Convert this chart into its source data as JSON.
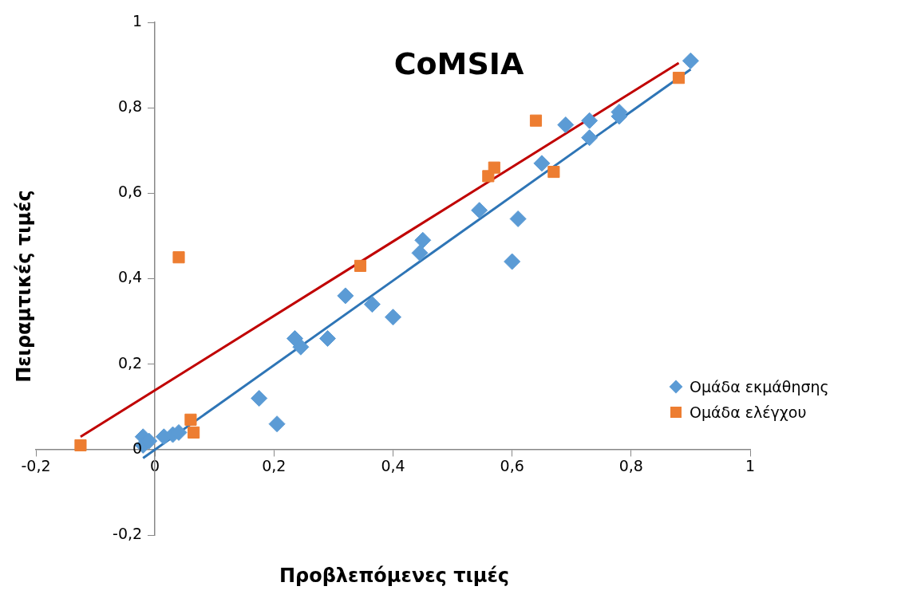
{
  "chart_data": {
    "type": "scatter",
    "title": "CoMSIA",
    "xlabel": "Προβλεπόμενες τιμές",
    "ylabel": "Πειραμτικές τιμές",
    "xlim": [
      -0.2,
      1
    ],
    "ylim": [
      -0.2,
      1
    ],
    "xticks": [
      {
        "value": -0.2,
        "label": "-0,2"
      },
      0,
      {
        "value": 0.2,
        "label": "0,2"
      },
      {
        "value": 0.4,
        "label": "0,4"
      },
      {
        "value": 0.6,
        "label": "0,6"
      },
      {
        "value": 0.8,
        "label": "0,8"
      },
      1
    ],
    "yticks": [
      {
        "value": -0.2,
        "label": "-0,2"
      },
      0,
      {
        "value": 0.2,
        "label": "0,2"
      },
      {
        "value": 0.4,
        "label": "0,4"
      },
      {
        "value": 0.6,
        "label": "0,6"
      },
      {
        "value": 0.8,
        "label": "0,8"
      },
      1
    ],
    "grid": false,
    "legend": "right",
    "series": [
      {
        "name": "Ομάδα εκμάθησης",
        "color": "#5b9bd5",
        "marker": "diamond",
        "x": [
          -0.02,
          -0.02,
          -0.01,
          0.015,
          0.03,
          0.04,
          0.175,
          0.205,
          0.235,
          0.245,
          0.29,
          0.32,
          0.365,
          0.4,
          0.445,
          0.45,
          0.545,
          0.6,
          0.61,
          0.65,
          0.69,
          0.73,
          0.73,
          0.78,
          0.78,
          0.9
        ],
        "values": [
          0.03,
          0.01,
          0.02,
          0.03,
          0.035,
          0.04,
          0.12,
          0.06,
          0.26,
          0.24,
          0.26,
          0.36,
          0.34,
          0.31,
          0.46,
          0.49,
          0.56,
          0.44,
          0.54,
          0.67,
          0.76,
          0.77,
          0.73,
          0.79,
          0.78,
          0.91
        ]
      },
      {
        "name": "Ομάδα ελέγχου",
        "color": "#ed7d31",
        "marker": "square",
        "x": [
          -0.125,
          0.04,
          0.06,
          0.065,
          0.345,
          0.56,
          0.57,
          0.64,
          0.67,
          0.88
        ],
        "values": [
          0.01,
          0.45,
          0.07,
          0.04,
          0.43,
          0.64,
          0.66,
          0.77,
          0.65,
          0.87
        ]
      },
      {
        "type": "line",
        "color": "#2e75b6",
        "marker": "none",
        "x": [
          -0.02,
          0.9
        ],
        "values": [
          -0.02,
          0.89
        ]
      },
      {
        "type": "line",
        "color": "#c00000",
        "marker": "none",
        "x": [
          -0.125,
          0.88
        ],
        "values": [
          0.03,
          0.905
        ]
      }
    ]
  }
}
